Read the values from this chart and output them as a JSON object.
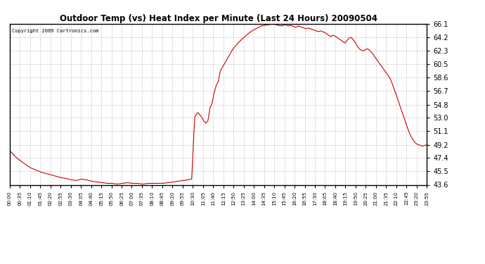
{
  "title": "Outdoor Temp (vs) Heat Index per Minute (Last 24 Hours) 20090504",
  "copyright": "Copyright 2009 Cartronics.com",
  "line_color": "#cc0000",
  "background_color": "#ffffff",
  "grid_color": "#bbbbbb",
  "ylim": [
    43.6,
    66.1
  ],
  "yticks": [
    43.6,
    45.5,
    47.4,
    49.2,
    51.1,
    53.0,
    54.8,
    56.7,
    58.6,
    60.5,
    62.3,
    64.2,
    66.1
  ],
  "xtick_labels": [
    "00:00",
    "00:35",
    "01:10",
    "01:45",
    "02:20",
    "02:55",
    "03:30",
    "04:05",
    "04:40",
    "05:15",
    "05:50",
    "06:25",
    "07:00",
    "07:35",
    "08:10",
    "08:45",
    "09:20",
    "09:55",
    "10:30",
    "11:05",
    "11:40",
    "12:15",
    "12:50",
    "13:25",
    "14:00",
    "14:35",
    "15:10",
    "15:45",
    "16:20",
    "16:55",
    "17:30",
    "18:05",
    "18:40",
    "19:15",
    "19:50",
    "20:25",
    "21:00",
    "21:35",
    "22:10",
    "22:45",
    "23:20",
    "23:55"
  ],
  "curve_keypoints": [
    [
      0,
      48.4
    ],
    [
      5,
      47.6
    ],
    [
      10,
      47.0
    ],
    [
      15,
      46.5
    ],
    [
      20,
      46.0
    ],
    [
      25,
      45.7
    ],
    [
      30,
      45.4
    ],
    [
      35,
      45.2
    ],
    [
      40,
      45.0
    ],
    [
      45,
      44.8
    ],
    [
      50,
      44.6
    ],
    [
      55,
      44.5
    ],
    [
      60,
      44.3
    ],
    [
      65,
      44.2
    ],
    [
      70,
      44.4
    ],
    [
      75,
      44.3
    ],
    [
      80,
      44.1
    ],
    [
      85,
      44.0
    ],
    [
      90,
      43.9
    ],
    [
      95,
      43.8
    ],
    [
      100,
      43.8
    ],
    [
      105,
      43.7
    ],
    [
      110,
      43.8
    ],
    [
      115,
      43.9
    ],
    [
      120,
      43.8
    ],
    [
      125,
      43.8
    ],
    [
      130,
      43.7
    ],
    [
      135,
      43.8
    ],
    [
      140,
      43.8
    ],
    [
      145,
      43.8
    ],
    [
      150,
      43.8
    ],
    [
      155,
      43.9
    ],
    [
      160,
      44.0
    ],
    [
      165,
      44.1
    ],
    [
      170,
      44.2
    ],
    [
      175,
      44.3
    ],
    [
      178,
      44.4
    ],
    [
      181,
      53.1
    ],
    [
      184,
      53.7
    ],
    [
      186,
      53.4
    ],
    [
      188,
      53.0
    ],
    [
      190,
      52.5
    ],
    [
      192,
      52.2
    ],
    [
      194,
      52.6
    ],
    [
      196,
      54.4
    ],
    [
      198,
      55.0
    ],
    [
      200,
      56.5
    ],
    [
      202,
      57.5
    ],
    [
      204,
      58.0
    ],
    [
      206,
      59.5
    ],
    [
      210,
      60.5
    ],
    [
      214,
      61.5
    ],
    [
      218,
      62.5
    ],
    [
      222,
      63.2
    ],
    [
      226,
      63.8
    ],
    [
      230,
      64.3
    ],
    [
      234,
      64.8
    ],
    [
      238,
      65.2
    ],
    [
      242,
      65.5
    ],
    [
      246,
      65.8
    ],
    [
      250,
      65.9
    ],
    [
      254,
      66.0
    ],
    [
      258,
      66.1
    ],
    [
      262,
      65.9
    ],
    [
      266,
      65.8
    ],
    [
      268,
      65.9
    ],
    [
      270,
      66.0
    ],
    [
      272,
      65.8
    ],
    [
      274,
      65.9
    ],
    [
      276,
      65.8
    ],
    [
      278,
      65.7
    ],
    [
      280,
      65.6
    ],
    [
      282,
      65.8
    ],
    [
      284,
      65.7
    ],
    [
      286,
      65.6
    ],
    [
      288,
      65.5
    ],
    [
      290,
      65.4
    ],
    [
      292,
      65.5
    ],
    [
      294,
      65.4
    ],
    [
      296,
      65.3
    ],
    [
      298,
      65.2
    ],
    [
      300,
      65.1
    ],
    [
      302,
      65.0
    ],
    [
      304,
      65.1
    ],
    [
      306,
      65.0
    ],
    [
      308,
      64.9
    ],
    [
      310,
      64.7
    ],
    [
      312,
      64.5
    ],
    [
      314,
      64.3
    ],
    [
      316,
      64.5
    ],
    [
      318,
      64.4
    ],
    [
      320,
      64.2
    ],
    [
      322,
      64.0
    ],
    [
      324,
      63.8
    ],
    [
      326,
      63.6
    ],
    [
      328,
      63.4
    ],
    [
      332,
      64.1
    ],
    [
      334,
      64.2
    ],
    [
      336,
      63.9
    ],
    [
      338,
      63.5
    ],
    [
      340,
      63.0
    ],
    [
      342,
      62.6
    ],
    [
      344,
      62.4
    ],
    [
      346,
      62.3
    ],
    [
      348,
      62.5
    ],
    [
      350,
      62.6
    ],
    [
      352,
      62.4
    ],
    [
      354,
      62.1
    ],
    [
      356,
      61.7
    ],
    [
      358,
      61.3
    ],
    [
      360,
      60.9
    ],
    [
      362,
      60.5
    ],
    [
      364,
      60.1
    ],
    [
      366,
      59.7
    ],
    [
      368,
      59.3
    ],
    [
      370,
      58.9
    ],
    [
      372,
      58.5
    ],
    [
      374,
      57.8
    ],
    [
      376,
      57.0
    ],
    [
      378,
      56.2
    ],
    [
      380,
      55.4
    ],
    [
      382,
      54.5
    ],
    [
      384,
      53.7
    ],
    [
      386,
      52.9
    ],
    [
      388,
      52.0
    ],
    [
      390,
      51.2
    ],
    [
      392,
      50.5
    ],
    [
      394,
      50.0
    ],
    [
      396,
      49.6
    ],
    [
      398,
      49.3
    ],
    [
      400,
      49.2
    ],
    [
      402,
      49.1
    ],
    [
      404,
      49.0
    ],
    [
      406,
      49.1
    ],
    [
      408,
      49.2
    ]
  ]
}
